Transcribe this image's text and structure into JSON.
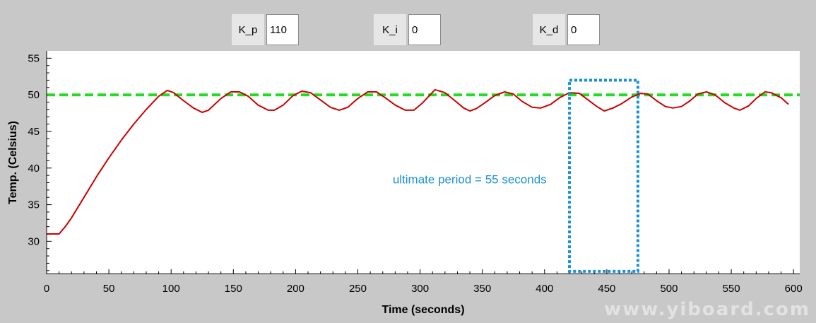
{
  "controls": [
    {
      "label": "K_p",
      "value": "110"
    },
    {
      "label": "K_i",
      "value": "0"
    },
    {
      "label": "K_d",
      "value": "0"
    }
  ],
  "watermark": "www.yiboard.com",
  "chart_data": {
    "type": "line",
    "xlabel": "Time (seconds)",
    "ylabel": "Temp. (Celsius)",
    "xlim": [
      0,
      605
    ],
    "ylim": [
      25.5,
      56
    ],
    "xticks": [
      0,
      50,
      100,
      150,
      200,
      250,
      300,
      350,
      400,
      450,
      500,
      550,
      600
    ],
    "yticks": [
      30,
      35,
      40,
      45,
      50,
      55
    ],
    "grid": false,
    "series": [
      {
        "color": "#cc0000",
        "style": "solid",
        "x": [
          0,
          10,
          15,
          20,
          30,
          40,
          50,
          60,
          70,
          80,
          90,
          97,
          102,
          110,
          118,
          125,
          130,
          140,
          148,
          155,
          162,
          170,
          178,
          183,
          190,
          198,
          205,
          212,
          220,
          228,
          235,
          242,
          250,
          258,
          265,
          272,
          280,
          288,
          295,
          302,
          312,
          320,
          328,
          335,
          340,
          345,
          352,
          360,
          368,
          375,
          382,
          390,
          397,
          405,
          412,
          420,
          428,
          435,
          442,
          448,
          455,
          462,
          470,
          477,
          483,
          490,
          497,
          503,
          510,
          517,
          523,
          530,
          537,
          545,
          552,
          557,
          564,
          570,
          577,
          582,
          590,
          596
        ],
        "y": [
          31,
          31,
          32,
          33.2,
          36,
          38.8,
          41.4,
          43.8,
          46,
          48,
          49.8,
          50.6,
          50.3,
          49.2,
          48.2,
          47.6,
          47.9,
          49.5,
          50.4,
          50.4,
          49.8,
          48.6,
          47.9,
          47.9,
          48.6,
          49.9,
          50.5,
          50.3,
          49.3,
          48.3,
          47.9,
          48.3,
          49.5,
          50.4,
          50.4,
          49.6,
          48.6,
          47.9,
          47.9,
          48.9,
          50.7,
          50.3,
          49.2,
          48.2,
          47.8,
          48.1,
          48.9,
          49.9,
          50.4,
          50.1,
          49.1,
          48.3,
          48.2,
          48.7,
          49.6,
          50.3,
          50.2,
          49.3,
          48.4,
          47.8,
          48.2,
          48.8,
          49.7,
          50.2,
          50.1,
          49.2,
          48.4,
          48.2,
          48.4,
          49.2,
          50.1,
          50.4,
          50,
          48.9,
          48.2,
          47.9,
          48.5,
          49.5,
          50.4,
          50.3,
          49.6,
          48.7
        ]
      },
      {
        "color": "#22dd22",
        "style": "dashed",
        "x": [
          0,
          605
        ],
        "y": [
          50,
          50
        ]
      }
    ],
    "annotations": [
      {
        "text": "ultimate period = 55 seconds",
        "x": 278,
        "y": 37.9,
        "color": "#1a90d8"
      }
    ],
    "highlight_box": {
      "x": [
        420,
        475
      ],
      "y": [
        25.9,
        52
      ],
      "color": "#1a90d8",
      "style": "dotted"
    }
  }
}
